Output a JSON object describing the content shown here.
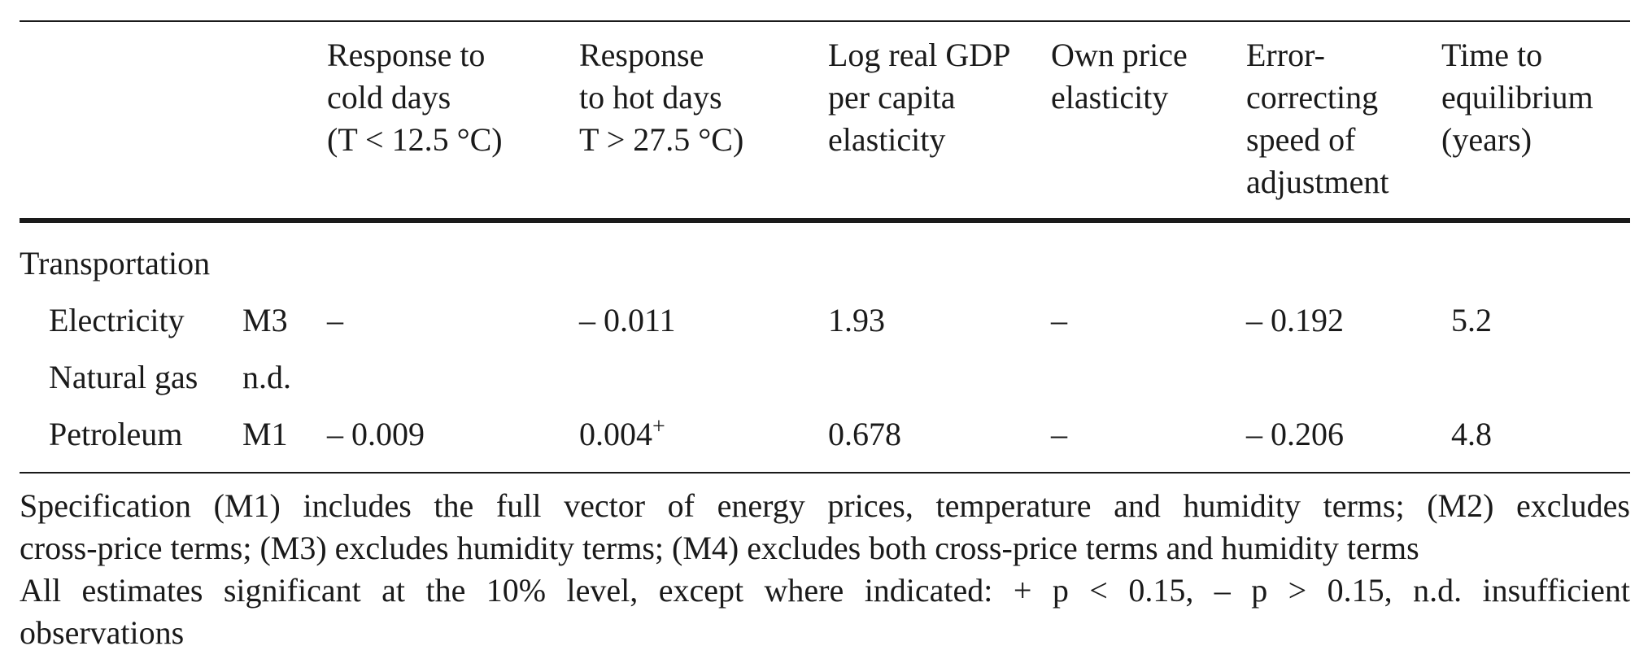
{
  "table": {
    "columns": [
      {
        "line1": "Response to",
        "line2": "cold days",
        "line3": "(T < 12.5 °C)"
      },
      {
        "line1": "Response",
        "line2": "to hot days",
        "line3": "T > 27.5 °C)"
      },
      {
        "line1": "Log real GDP",
        "line2": "per capita",
        "line3": "elasticity"
      },
      {
        "line1": "Own price",
        "line2": "elasticity"
      },
      {
        "line1": "Error-",
        "line2": "correcting",
        "line3": "speed of",
        "line4": "adjustment"
      },
      {
        "line1": "Time to",
        "line2": "equilibrium",
        "line3": "(years)"
      }
    ],
    "section": "Transportation",
    "rows": [
      {
        "fuel": "Electricity",
        "model": "M3",
        "cold": "–",
        "hot": "– 0.011",
        "gdp": "1.93",
        "price": "–",
        "speed": "– 0.192",
        "time": "5.2"
      },
      {
        "fuel": "Natural gas",
        "model": "n.d."
      },
      {
        "fuel": "Petroleum",
        "model": "M1",
        "cold": "– 0.009",
        "hot": "0.004",
        "hot_sup": "+",
        "gdp": "0.678",
        "price": "–",
        "speed": "– 0.206",
        "time": "4.8"
      }
    ]
  },
  "notes": {
    "line1": "Specification (M1) includes the full vector of energy prices, temperature and humidity terms; (M2) excludes",
    "line2": "cross-price terms; (M3) excludes humidity terms; (M4) excludes both cross-price terms and humidity terms",
    "line3": "All estimates significant at the 10% level, except where indicated: + p < 0.15, – p > 0.15, n.d. insufficient",
    "line4": "observations"
  }
}
